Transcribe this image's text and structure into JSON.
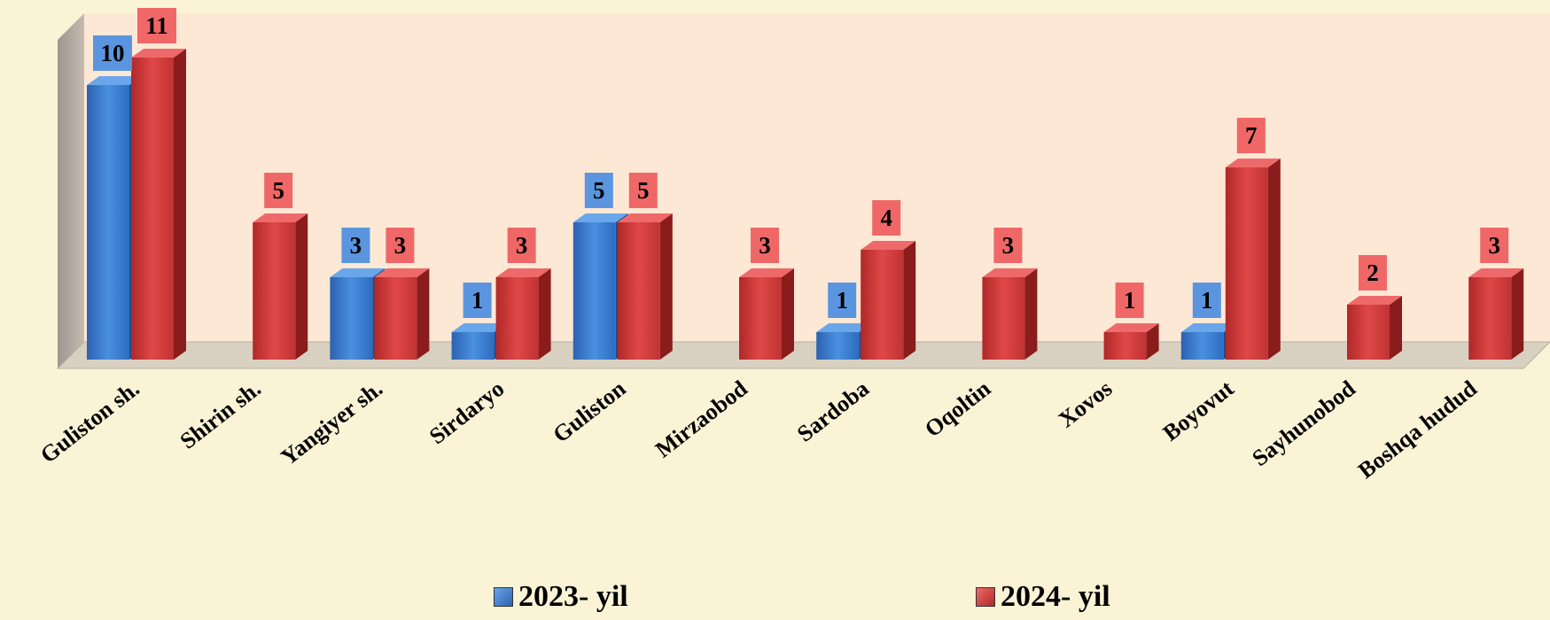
{
  "chart_data": {
    "type": "bar",
    "categories": [
      "Guliston sh.",
      "Shirin sh.",
      "Yangiyer sh.",
      "Sirdaryo",
      "Guliston",
      "Mirzaobod",
      "Sardoba",
      "Oqoltin",
      "Xovos",
      "Boyovut",
      "Sayhunobod",
      "Boshqa hudud"
    ],
    "series": [
      {
        "name": "2023- yil",
        "color": "#3a7fd0",
        "values": [
          10,
          null,
          3,
          1,
          5,
          null,
          1,
          null,
          null,
          1,
          null,
          null
        ]
      },
      {
        "name": "2024- yil",
        "color": "#d43c3c",
        "values": [
          11,
          5,
          3,
          3,
          5,
          3,
          4,
          3,
          1,
          7,
          2,
          3
        ]
      }
    ],
    "ylim": [
      0,
      12
    ],
    "grid": false,
    "legend": "bottom",
    "style": "3d-column"
  }
}
